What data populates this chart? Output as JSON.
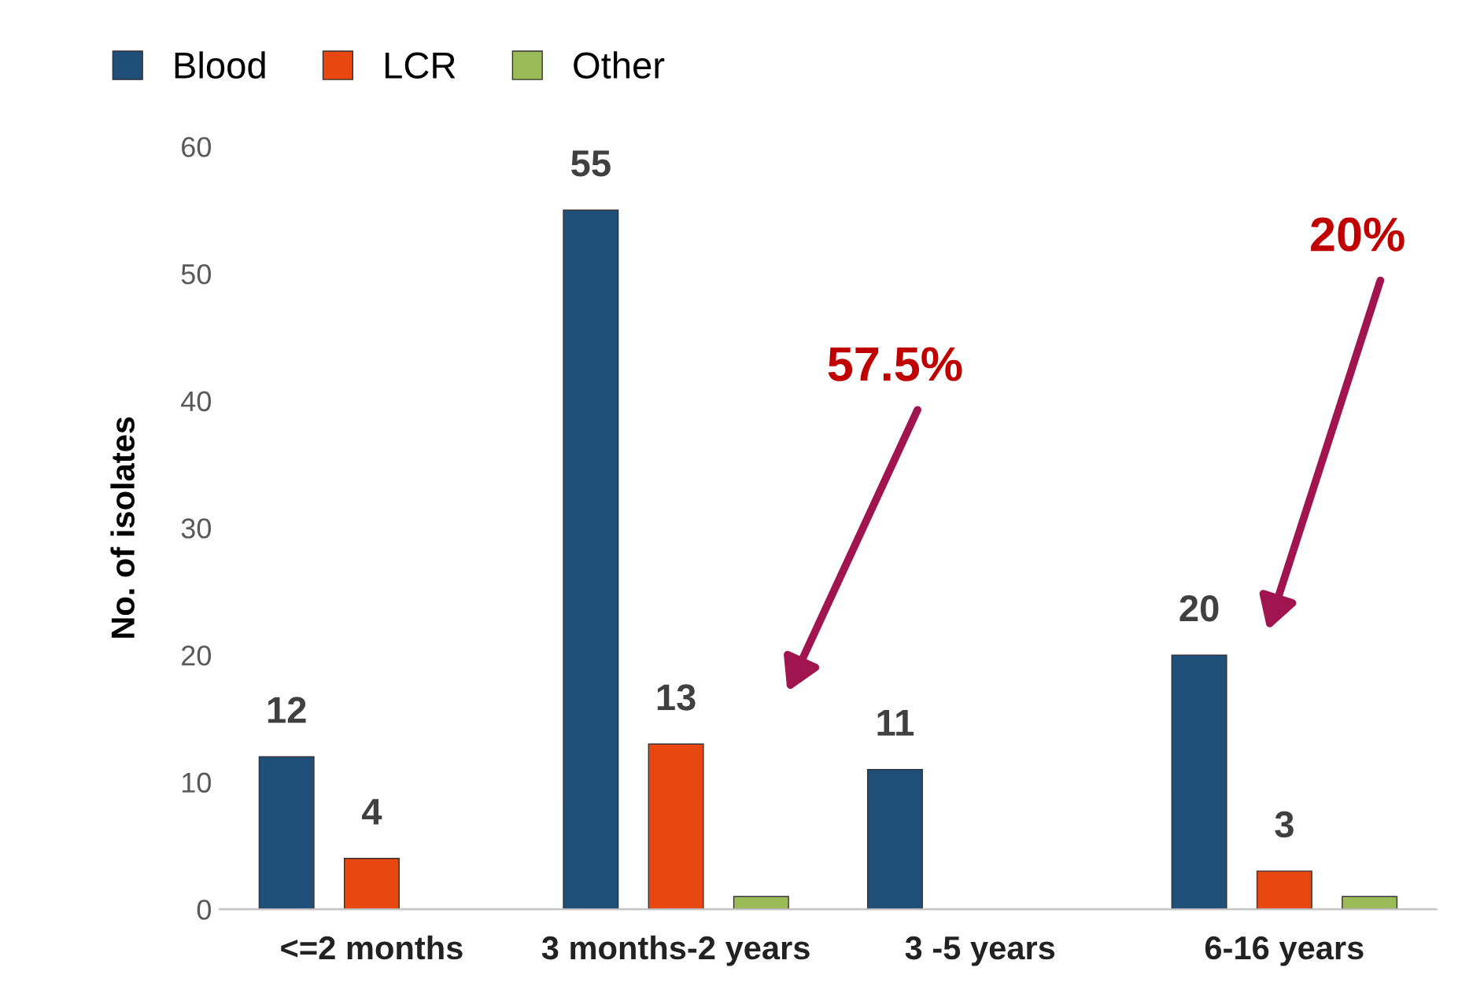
{
  "chart_data": {
    "type": "bar",
    "ylabel": "No. of isolates",
    "categories": [
      "<=2 months",
      "3 months-2 years",
      "3 -5 years",
      "6-16 years"
    ],
    "series": [
      {
        "name": "Blood",
        "color": "#1f4e79",
        "values": [
          12,
          55,
          11,
          20
        ],
        "value_labels": [
          "12",
          "55",
          "11",
          "20"
        ]
      },
      {
        "name": "LCR",
        "color": "#e8470f",
        "values": [
          4,
          13,
          null,
          3
        ],
        "value_labels": [
          "4",
          "13",
          null,
          "3"
        ]
      },
      {
        "name": "Other",
        "color": "#9bbb59",
        "values": [
          null,
          1,
          null,
          1
        ]
      }
    ],
    "ylim": [
      0,
      60
    ],
    "yticks": [
      0,
      10,
      20,
      30,
      40,
      50,
      60
    ],
    "grid": false,
    "legend": "top left",
    "annotations": [
      "57.5%",
      "20%"
    ]
  }
}
